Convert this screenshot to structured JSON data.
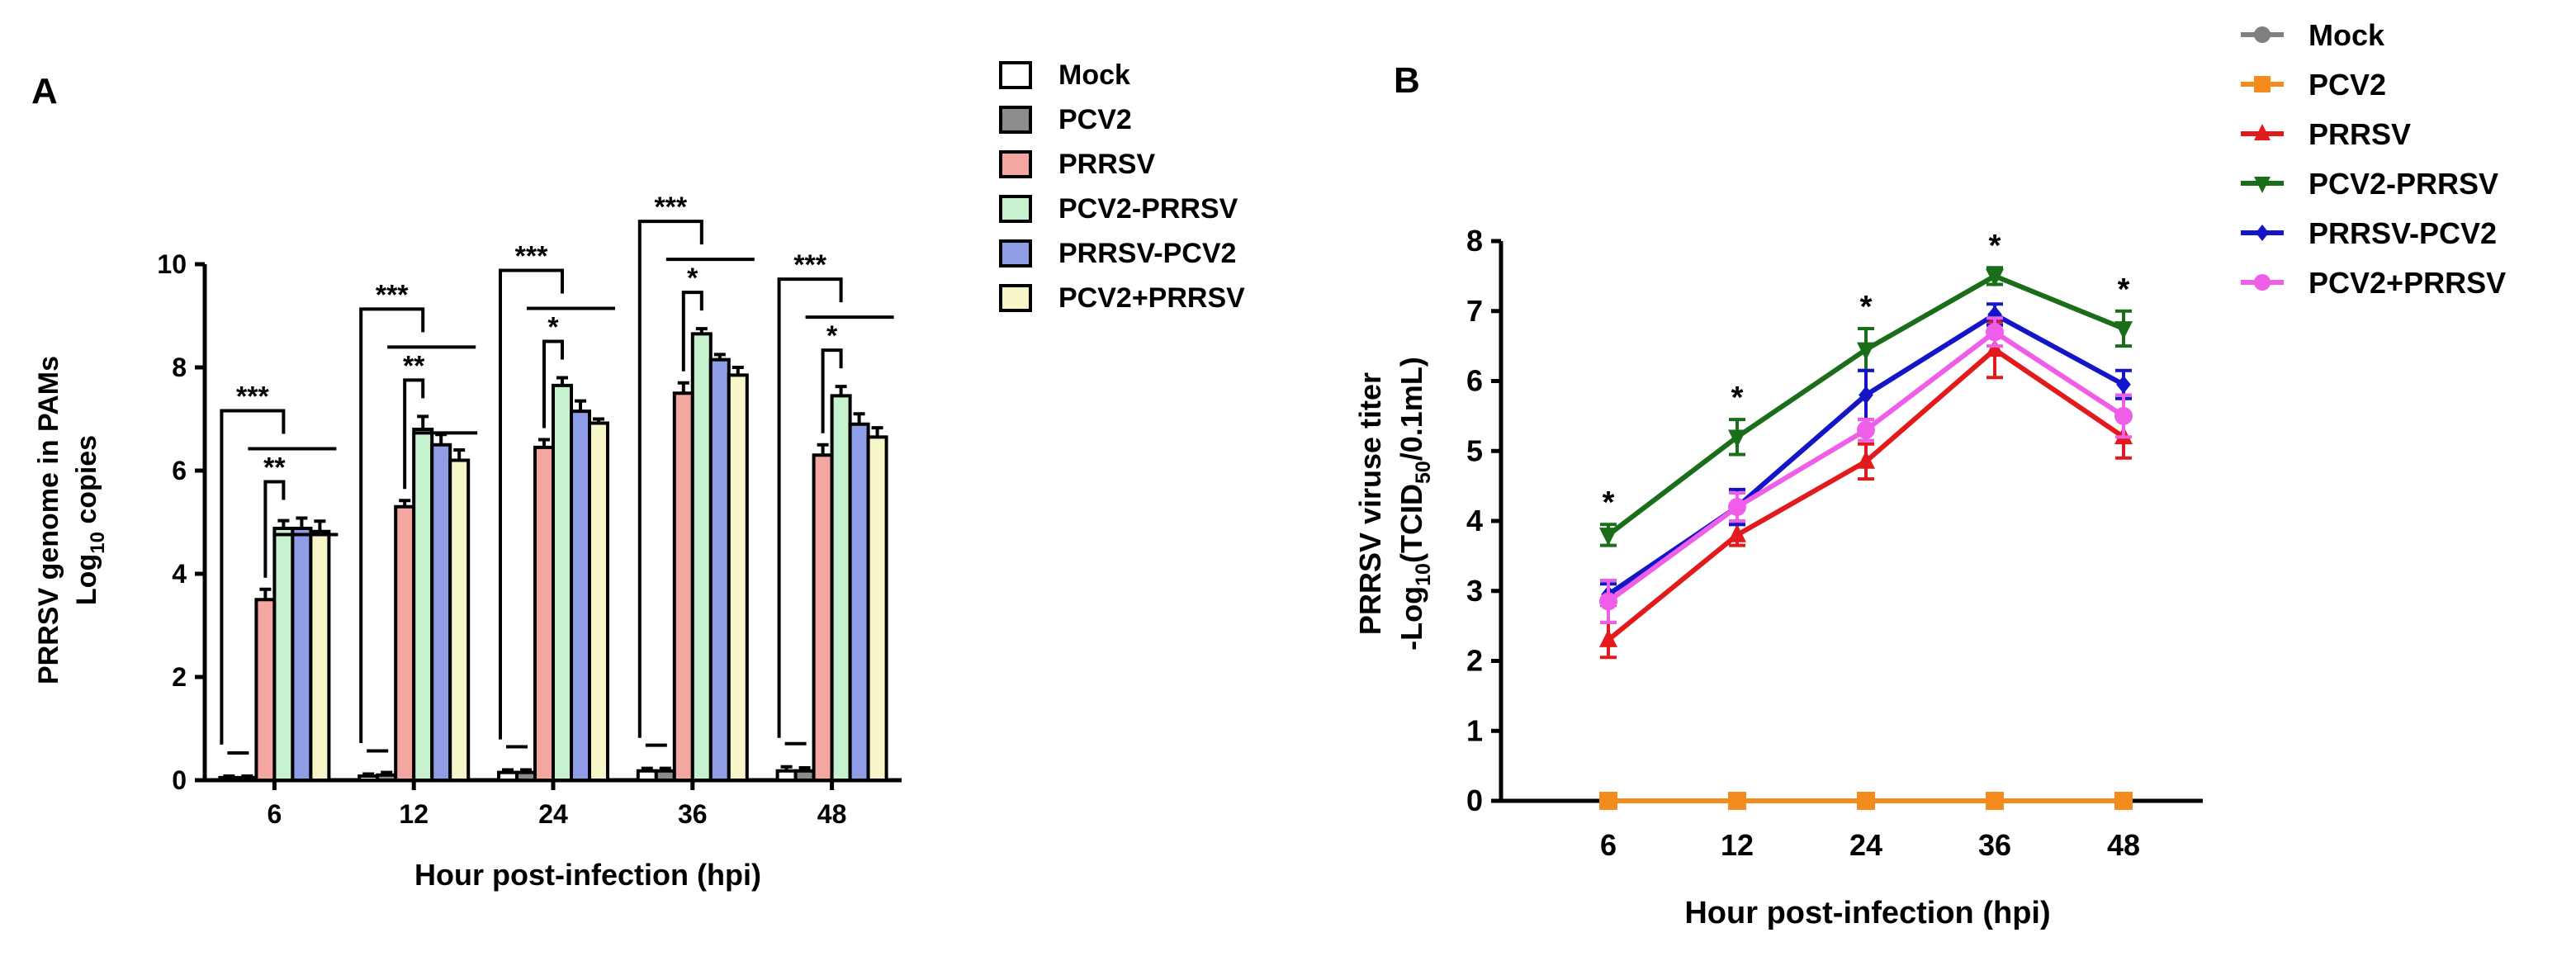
{
  "chart_data": [
    {
      "panel_label": "A",
      "type": "bar",
      "ylabel_line1": "PRRSV genome in PAMs",
      "ylabel_line2_pre": "Log",
      "ylabel_line2_sub": "10",
      "ylabel_line2_post": " copies",
      "xlabel": "Hour post-infection (hpi)",
      "ylim": [
        0,
        10
      ],
      "yticks": [
        0,
        2,
        4,
        6,
        8,
        10
      ],
      "categories": [
        "6",
        "12",
        "24",
        "36",
        "48"
      ],
      "series": [
        {
          "name": "Mock",
          "color": "#ffffff",
          "values": [
            0.05,
            0.08,
            0.15,
            0.18,
            0.18
          ],
          "errors": [
            0.03,
            0.04,
            0.05,
            0.05,
            0.08
          ]
        },
        {
          "name": "PCV2",
          "color": "#8c8c8c",
          "values": [
            0.05,
            0.1,
            0.15,
            0.18,
            0.18
          ],
          "errors": [
            0.03,
            0.05,
            0.05,
            0.05,
            0.06
          ]
        },
        {
          "name": "PRRSV",
          "color": "#f4a6a0",
          "values": [
            3.5,
            5.3,
            6.45,
            7.5,
            6.3
          ],
          "errors": [
            0.2,
            0.12,
            0.15,
            0.2,
            0.2
          ]
        },
        {
          "name": "PCV2-PRRSV",
          "color": "#c6f2cf",
          "values": [
            4.88,
            6.8,
            7.65,
            8.65,
            7.45
          ],
          "errors": [
            0.15,
            0.25,
            0.15,
            0.1,
            0.18
          ]
        },
        {
          "name": "PRRSV-PCV2",
          "color": "#8f9de6",
          "values": [
            4.88,
            6.5,
            7.15,
            8.15,
            6.9
          ],
          "errors": [
            0.2,
            0.2,
            0.2,
            0.1,
            0.2
          ]
        },
        {
          "name": "PCV2+PRRSV",
          "color": "#f6f6c8",
          "values": [
            4.82,
            6.2,
            6.92,
            7.85,
            6.65
          ],
          "errors": [
            0.2,
            0.2,
            0.08,
            0.15,
            0.18
          ]
        }
      ],
      "significance": {
        "label_outer": "***",
        "label_middle": "**",
        "label_inner": "*",
        "middle_groups": [
          "6",
          "12"
        ]
      }
    },
    {
      "panel_label": "B",
      "type": "line",
      "ylabel_line1": "PRRSV viruse titer",
      "ylabel_line2_pre": "-Log",
      "ylabel_line2_sub": "10",
      "ylabel_line2_mid": "(TCID",
      "ylabel_line2_sub2": "50",
      "ylabel_line2_post": "/0.1mL)",
      "xlabel": "Hour post-infection (hpi)",
      "ylim": [
        0,
        8
      ],
      "yticks": [
        0,
        1,
        2,
        3,
        4,
        5,
        6,
        7,
        8
      ],
      "x": [
        "6",
        "12",
        "24",
        "36",
        "48"
      ],
      "series": [
        {
          "name": "Mock",
          "color": "#7f7f7f",
          "marker": "circle",
          "values": [
            0,
            0,
            0,
            0,
            0
          ],
          "errors": [
            0,
            0,
            0,
            0,
            0
          ]
        },
        {
          "name": "PCV2",
          "color": "#f28c1e",
          "marker": "square",
          "values": [
            0,
            0,
            0,
            0,
            0
          ],
          "errors": [
            0,
            0,
            0,
            0,
            0
          ]
        },
        {
          "name": "PRRSV",
          "color": "#e31a1c",
          "marker": "triangle",
          "values": [
            2.3,
            3.8,
            4.85,
            6.45,
            5.2
          ],
          "errors": [
            0.25,
            0.15,
            0.25,
            0.4,
            0.3
          ]
        },
        {
          "name": "PCV2-PRRSV",
          "color": "#1a6e1a",
          "marker": "tri-down",
          "values": [
            3.8,
            5.2,
            6.45,
            7.5,
            6.75
          ],
          "errors": [
            0.15,
            0.25,
            0.3,
            0.12,
            0.25
          ]
        },
        {
          "name": "PRRSV-PCV2",
          "color": "#1515c8",
          "marker": "diamond",
          "values": [
            2.95,
            4.2,
            5.8,
            6.95,
            5.95
          ],
          "errors": [
            0.15,
            0.25,
            0.35,
            0.15,
            0.2
          ]
        },
        {
          "name": "PCV2+PRRSV",
          "color": "#ee5ee8",
          "marker": "circle",
          "values": [
            2.85,
            4.2,
            5.3,
            6.7,
            5.5
          ],
          "errors": [
            0.3,
            0.2,
            0.15,
            0.2,
            0.3
          ]
        }
      ],
      "significance_label": "*",
      "significant_points": [
        "6",
        "12",
        "24",
        "36",
        "48"
      ]
    }
  ]
}
